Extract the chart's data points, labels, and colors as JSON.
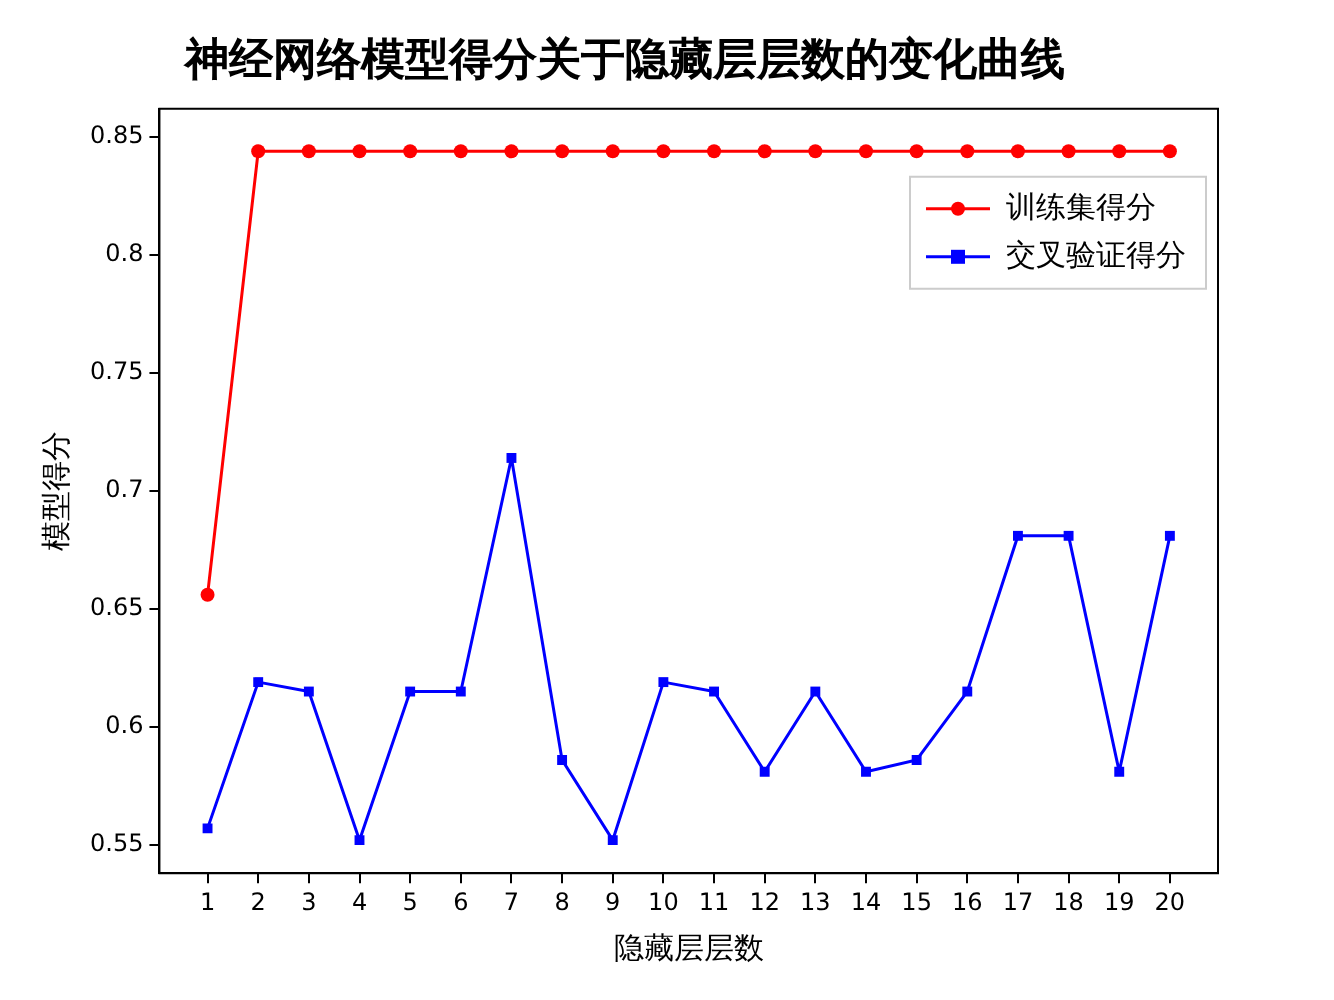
{
  "chart_data": {
    "type": "line",
    "title": "神经网络模型得分关于隐藏层层数的变化曲线",
    "xlabel": "隐藏层层数",
    "ylabel": "模型得分",
    "x": [
      1,
      2,
      3,
      4,
      5,
      6,
      7,
      8,
      9,
      10,
      11,
      12,
      13,
      14,
      15,
      16,
      17,
      18,
      19,
      20
    ],
    "xlim": [
      0.05,
      20.95
    ],
    "xticks": [
      1,
      2,
      3,
      4,
      5,
      6,
      7,
      8,
      9,
      10,
      11,
      12,
      13,
      14,
      15,
      16,
      17,
      18,
      19,
      20
    ],
    "ylim": [
      0.538,
      0.862
    ],
    "yticks": [
      0.55,
      0.6,
      0.65,
      0.7,
      0.75,
      0.8,
      0.85
    ],
    "series": [
      {
        "name": "训练集得分",
        "color": "#ff0000",
        "marker": "circle",
        "values": [
          0.656,
          0.844,
          0.844,
          0.844,
          0.844,
          0.844,
          0.844,
          0.844,
          0.844,
          0.844,
          0.844,
          0.844,
          0.844,
          0.844,
          0.844,
          0.844,
          0.844,
          0.844,
          0.844,
          0.844
        ]
      },
      {
        "name": "交叉验证得分",
        "color": "#0000ff",
        "marker": "square",
        "values": [
          0.557,
          0.619,
          0.615,
          0.552,
          0.615,
          0.615,
          0.714,
          0.586,
          0.552,
          0.619,
          0.615,
          0.581,
          0.615,
          0.581,
          0.586,
          0.615,
          0.681,
          0.681,
          0.581,
          0.681
        ]
      }
    ],
    "grid": false,
    "legend": "top right",
    "line_style": "solid"
  }
}
